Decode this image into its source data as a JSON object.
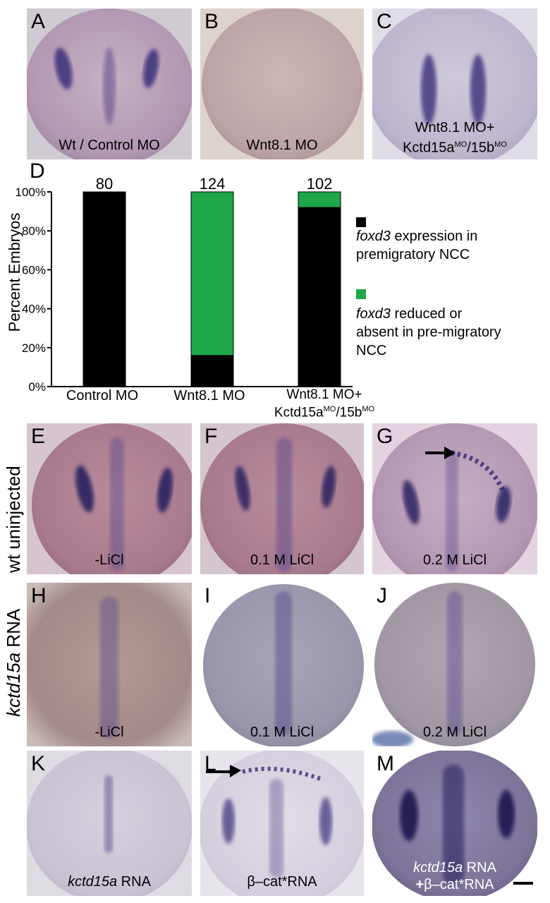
{
  "colors": {
    "stain": "#3b2d7a",
    "yolk_pink": "#bea2b6",
    "yolk_beige": "#d8ccc4",
    "yolk_lav": "#c9c3d6",
    "yolk_brown": "#a8888f",
    "yolk_gray": "#a9a8b8",
    "black_bar": "#000000",
    "green_bar": "#1ea84a"
  },
  "panels": {
    "A": {
      "letter": "A",
      "caption": "Wt / Control MO"
    },
    "B": {
      "letter": "B",
      "caption": "Wnt8.1 MO"
    },
    "C": {
      "letter": "C",
      "caption_line1": "Wnt8.1 MO+",
      "caption_line2_a": "Kctd15a",
      "caption_line2_sup1": "MO",
      "caption_line2_b": "/15b",
      "caption_line2_sup2": "MO"
    },
    "E": {
      "letter": "E",
      "caption": "-LiCl"
    },
    "F": {
      "letter": "F",
      "caption": "0.1 M LiCl"
    },
    "G": {
      "letter": "G",
      "caption": "0.2 M LiCl"
    },
    "H": {
      "letter": "H",
      "caption": "-LiCl"
    },
    "I": {
      "letter": "I",
      "caption": "0.1 M LiCl"
    },
    "J": {
      "letter": "J",
      "caption": "0.2 M LiCl"
    },
    "K": {
      "letter": "K",
      "caption_italic": "kctd15a",
      "caption_rest": " RNA"
    },
    "L": {
      "letter": "L",
      "caption": "β–cat*RNA"
    },
    "M": {
      "letter": "M",
      "caption_line1_italic": "kctd15a",
      "caption_line1_rest": " RNA",
      "caption_line2_bold": "+",
      "caption_line2_rest": "β–cat*RNA"
    }
  },
  "row_labels": {
    "wt": "wt uninjected",
    "kctd_italic": "kctd15a",
    "kctd_rest": " RNA"
  },
  "chart_data": {
    "type": "bar",
    "panel_letter": "D",
    "ylabel": "Percent  Embryos",
    "ylim": [
      0,
      100
    ],
    "yticks": [
      "0%",
      "20%",
      "40%",
      "60%",
      "80%",
      "100%"
    ],
    "categories": [
      "Control MO",
      "Wnt8.1 MO",
      "Wnt8.1 MO+ Kctd15aMO/15bMO"
    ],
    "category_labels": {
      "c0": "Control MO",
      "c1": "Wnt8.1 MO",
      "c2_line1": "Wnt8.1 MO+",
      "c2_line2_a": "Kctd15a",
      "c2_line2_sup1": "MO",
      "c2_line2_b": "/15b",
      "c2_line2_sup2": "MO"
    },
    "totals": [
      "80",
      "124",
      "102"
    ],
    "series": [
      {
        "name": "foxd3 expression in premigratory NCC",
        "color": "#000000",
        "values": [
          100,
          16,
          92
        ]
      },
      {
        "name": "foxd3 reduced or absent in pre-migratory NCC",
        "color": "#1ea84a",
        "values": [
          0,
          84,
          8
        ]
      }
    ],
    "legend": {
      "s1_italic": "foxd3",
      "s1_line1_rest": " expression in",
      "s1_line2": " premigratory NCC",
      "s2_italic": "foxd3",
      "s2_line1_rest": " reduced or",
      "s2_line2": "absent in pre-migratory",
      "s2_line3": "NCC"
    }
  }
}
